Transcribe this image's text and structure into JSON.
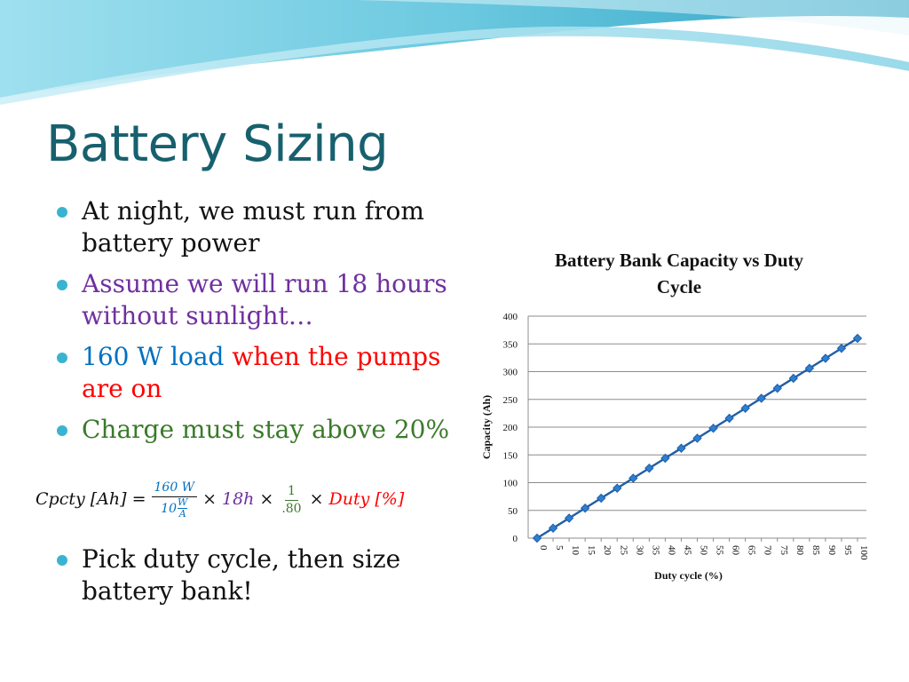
{
  "slide": {
    "title": "Battery Sizing",
    "bullets": [
      {
        "text": "At night, we must run from battery power",
        "color": "#111111"
      },
      {
        "text": "Assume we will run 18 hours without sunlight…",
        "color": "#7030a0"
      },
      {
        "parts": [
          {
            "text": "160 W load",
            "color": "#0070c0"
          },
          {
            "text": " when the pumps are on",
            "color": "#ff0000"
          }
        ]
      },
      {
        "text": "Charge must stay above 20%",
        "color": "#3a7a2a"
      }
    ],
    "last_bullet": {
      "text": "Pick duty cycle, then size battery bank!",
      "color": "#111111"
    },
    "formula": {
      "lhs": "Cpcty [Ah] =",
      "num": "160 W",
      "den_coef": "10",
      "den_frac_num": "W",
      "den_frac_den": "A",
      "times1": "×",
      "hours": "18h",
      "times2": "×",
      "frac2_num": "1",
      "frac2_den": ".80",
      "times3": "×",
      "duty": "Duty [%]"
    }
  },
  "chart_data": {
    "type": "line",
    "title": "Battery Bank Capacity vs Duty Cycle",
    "xlabel": "Duty cycle (%)",
    "ylabel": "Capacity (Ah)",
    "ylim": [
      0,
      400
    ],
    "yticks": [
      0,
      50,
      100,
      150,
      200,
      250,
      300,
      350,
      400
    ],
    "x": [
      0,
      5,
      10,
      15,
      20,
      25,
      30,
      35,
      40,
      45,
      50,
      55,
      60,
      65,
      70,
      75,
      80,
      85,
      90,
      95,
      100
    ],
    "series": [
      {
        "values": [
          0,
          18,
          36,
          54,
          72,
          90,
          108,
          126,
          144,
          162,
          180,
          198,
          216,
          234,
          252,
          270,
          288,
          306,
          324,
          342,
          360
        ],
        "color": "#1f5fa8"
      }
    ],
    "grid": true,
    "legend": "none"
  }
}
